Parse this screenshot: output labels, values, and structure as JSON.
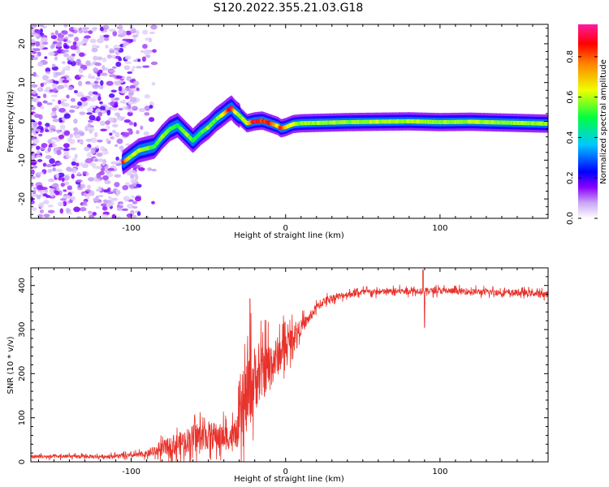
{
  "figure_title": "S120.2022.355.21.03.G18",
  "chart_data": [
    {
      "type": "heatmap",
      "title": "",
      "xlabel": "Height of straight line (km)",
      "ylabel": "Frequency (Hz)",
      "xlim": [
        -165,
        170
      ],
      "ylim": [
        -25,
        25
      ],
      "x_ticks": [
        -100,
        0,
        100
      ],
      "y_ticks": [
        -20,
        -10,
        0,
        10,
        20
      ],
      "colorbar": {
        "label": "Normalized spectral amplitude",
        "range": [
          0,
          0.96
        ],
        "ticks": [
          0.0,
          0.2,
          0.4,
          0.6,
          0.8
        ]
      },
      "noise_region_x": [
        -165,
        -95
      ],
      "ridge": {
        "x": [
          -105,
          -100,
          -95,
          -90,
          -85,
          -80,
          -75,
          -70,
          -65,
          -60,
          -55,
          -50,
          -45,
          -40,
          -37,
          -35,
          -33,
          -30,
          -25,
          -20,
          -15,
          -10,
          -5,
          -3,
          0,
          5,
          10,
          20,
          40,
          60,
          80,
          100,
          120,
          140,
          160,
          170
        ],
        "freq": [
          -10.5,
          -9,
          -7.5,
          -7,
          -6.5,
          -4,
          -2,
          -1,
          -3,
          -5,
          -3,
          -1.5,
          0.5,
          2,
          3,
          3.5,
          2.5,
          1.5,
          -0.5,
          0,
          0.2,
          -0.5,
          -1.2,
          -1.8,
          -1.5,
          -0.7,
          -0.5,
          -0.4,
          -0.2,
          -0.1,
          0,
          -0.2,
          -0.1,
          -0.3,
          -0.5,
          -0.6
        ],
        "amplitude": [
          0.9,
          0.6,
          0.65,
          0.6,
          0.55,
          0.6,
          0.55,
          0.5,
          0.6,
          0.55,
          0.5,
          0.6,
          0.55,
          0.65,
          0.9,
          0.95,
          0.7,
          0.6,
          0.65,
          0.95,
          0.85,
          0.9,
          0.65,
          0.95,
          0.7,
          0.65,
          0.6,
          0.6,
          0.6,
          0.62,
          0.62,
          0.6,
          0.62,
          0.6,
          0.6,
          0.6
        ]
      }
    },
    {
      "type": "line",
      "title": "",
      "xlabel": "Height of straight line (km)",
      "ylabel": "SNR (10 * v/v)",
      "xlim": [
        -165,
        170
      ],
      "ylim": [
        0,
        440
      ],
      "x_ticks": [
        -100,
        0,
        100
      ],
      "y_ticks": [
        0,
        100,
        200,
        300,
        400
      ],
      "color": "#e8322b",
      "envelope": {
        "x": [
          -165,
          -140,
          -120,
          -100,
          -90,
          -85,
          -80,
          -70,
          -60,
          -50,
          -40,
          -32,
          -28,
          -25,
          -20,
          -15,
          -10,
          -5,
          0,
          5,
          10,
          15,
          20,
          25,
          30,
          40,
          50,
          60,
          80,
          88,
          92,
          100,
          120,
          140,
          160,
          170
        ],
        "mean": [
          12,
          12,
          12,
          14,
          18,
          22,
          30,
          40,
          55,
          60,
          55,
          60,
          100,
          150,
          190,
          200,
          220,
          240,
          260,
          285,
          305,
          325,
          350,
          365,
          372,
          380,
          385,
          385,
          388,
          388,
          388,
          388,
          386,
          384,
          382,
          380
        ],
        "spread": [
          8,
          8,
          8,
          10,
          14,
          20,
          35,
          50,
          60,
          65,
          60,
          55,
          150,
          180,
          150,
          120,
          110,
          90,
          70,
          50,
          35,
          25,
          20,
          18,
          15,
          14,
          14,
          14,
          14,
          14,
          14,
          14,
          14,
          14,
          14,
          14
        ]
      },
      "spikes": [
        {
          "x": -23,
          "y": 370
        },
        {
          "x": 89,
          "y": 435
        },
        {
          "x": 90,
          "y": 305
        }
      ]
    }
  ]
}
